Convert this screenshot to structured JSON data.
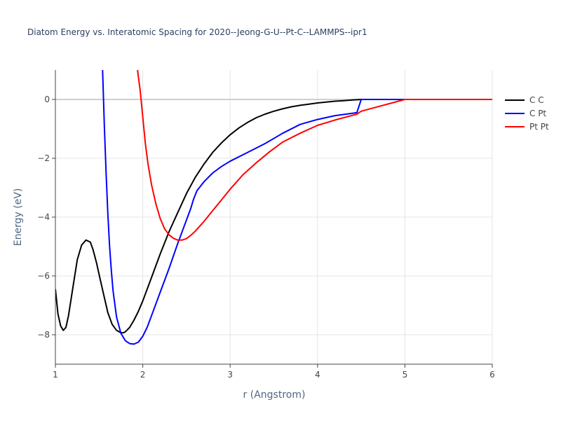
{
  "chart_data": {
    "type": "line",
    "title": "Diatom Energy vs. Interatomic Spacing for 2020--Jeong-G-U--Pt-C--LAMMPS--ipr1",
    "xlabel": "r (Angstrom)",
    "ylabel": "Energy (eV)",
    "xlim": [
      1,
      6
    ],
    "ylim": [
      -9,
      1
    ],
    "xticks": [
      1,
      2,
      3,
      4,
      5,
      6
    ],
    "xtick_labels": [
      "1",
      "2",
      "3",
      "4",
      "5",
      "6"
    ],
    "yticks": [
      -8,
      -6,
      -4,
      -2,
      0
    ],
    "ytick_labels": [
      "−8",
      "−6",
      "−4",
      "−2",
      "0"
    ],
    "grid": true,
    "legend_position": "top-right",
    "series": [
      {
        "name": "C C",
        "color": "#000000",
        "x": [
          1.0,
          1.03,
          1.06,
          1.09,
          1.12,
          1.15,
          1.2,
          1.25,
          1.3,
          1.35,
          1.4,
          1.43,
          1.47,
          1.5,
          1.55,
          1.6,
          1.65,
          1.7,
          1.75,
          1.78,
          1.8,
          1.85,
          1.9,
          1.95,
          2.0,
          2.1,
          2.2,
          2.3,
          2.4,
          2.5,
          2.6,
          2.7,
          2.8,
          2.9,
          3.0,
          3.1,
          3.2,
          3.3,
          3.4,
          3.5,
          3.6,
          3.7,
          3.8,
          3.9,
          4.0,
          4.1,
          4.2,
          4.3,
          4.4,
          4.5,
          5.0,
          6.0
        ],
        "y": [
          -6.45,
          -7.3,
          -7.7,
          -7.85,
          -7.75,
          -7.35,
          -6.4,
          -5.45,
          -4.95,
          -4.78,
          -4.85,
          -5.1,
          -5.55,
          -5.95,
          -6.6,
          -7.25,
          -7.65,
          -7.85,
          -7.93,
          -7.93,
          -7.9,
          -7.75,
          -7.5,
          -7.2,
          -6.85,
          -6.05,
          -5.25,
          -4.5,
          -3.85,
          -3.2,
          -2.65,
          -2.2,
          -1.8,
          -1.48,
          -1.2,
          -0.97,
          -0.78,
          -0.62,
          -0.5,
          -0.4,
          -0.32,
          -0.25,
          -0.2,
          -0.16,
          -0.12,
          -0.09,
          -0.06,
          -0.04,
          -0.02,
          0.0,
          0.0,
          0.0
        ]
      },
      {
        "name": "C Pt",
        "color": "#0000ff",
        "x": [
          1.54,
          1.56,
          1.58,
          1.6,
          1.62,
          1.64,
          1.66,
          1.7,
          1.75,
          1.8,
          1.85,
          1.9,
          1.95,
          2.0,
          2.05,
          2.1,
          2.2,
          2.3,
          2.4,
          2.5,
          2.55,
          2.58,
          2.62,
          2.7,
          2.8,
          2.9,
          3.0,
          3.2,
          3.4,
          3.6,
          3.8,
          4.0,
          4.2,
          4.45,
          4.5,
          5.0,
          6.0
        ],
        "y": [
          1.0,
          -0.9,
          -2.5,
          -3.9,
          -5.0,
          -5.8,
          -6.5,
          -7.4,
          -7.95,
          -8.2,
          -8.3,
          -8.32,
          -8.25,
          -8.05,
          -7.75,
          -7.35,
          -6.55,
          -5.75,
          -4.9,
          -4.1,
          -3.7,
          -3.4,
          -3.1,
          -2.8,
          -2.5,
          -2.28,
          -2.1,
          -1.8,
          -1.5,
          -1.15,
          -0.85,
          -0.68,
          -0.55,
          -0.45,
          0.0,
          0.0,
          0.0
        ]
      },
      {
        "name": "Pt Pt",
        "color": "#ff0000",
        "x": [
          1.94,
          1.97,
          2.0,
          2.03,
          2.06,
          2.1,
          2.15,
          2.2,
          2.25,
          2.3,
          2.35,
          2.4,
          2.45,
          2.5,
          2.55,
          2.6,
          2.7,
          2.8,
          2.9,
          3.0,
          3.15,
          3.3,
          3.45,
          3.6,
          3.8,
          4.0,
          4.2,
          4.45,
          4.5,
          5.0,
          6.0
        ],
        "y": [
          1.0,
          0.3,
          -0.6,
          -1.5,
          -2.2,
          -2.9,
          -3.55,
          -4.05,
          -4.4,
          -4.6,
          -4.72,
          -4.78,
          -4.78,
          -4.73,
          -4.62,
          -4.48,
          -4.15,
          -3.78,
          -3.42,
          -3.05,
          -2.55,
          -2.15,
          -1.78,
          -1.45,
          -1.15,
          -0.88,
          -0.7,
          -0.5,
          -0.4,
          0.0,
          0.0
        ]
      }
    ]
  }
}
